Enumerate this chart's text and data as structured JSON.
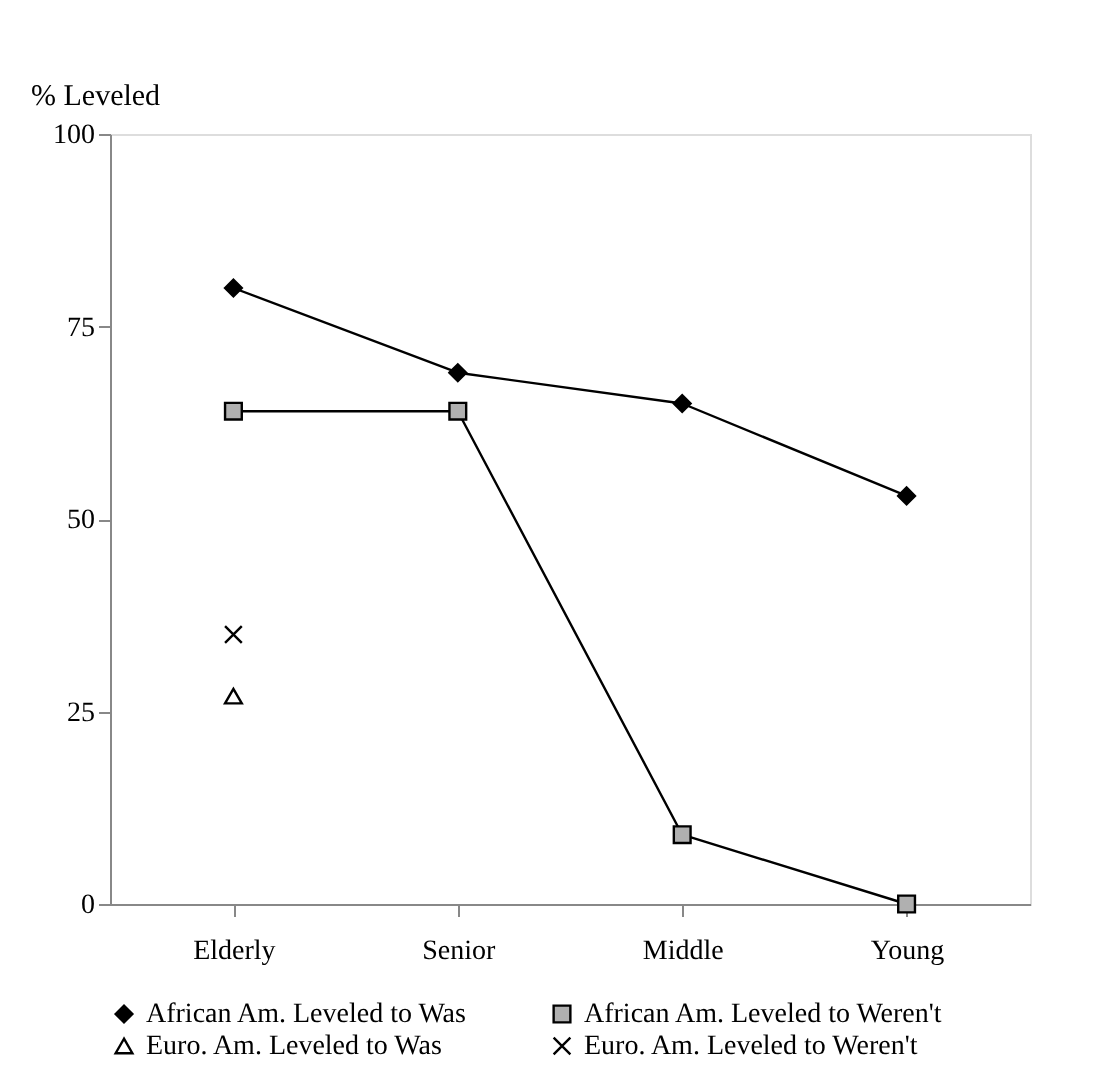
{
  "chart_data": {
    "type": "line",
    "ylabel": "% Leveled",
    "categories": [
      "Elderly",
      "Senior",
      "Middle",
      "Young"
    ],
    "ylim": [
      0,
      100
    ],
    "yticks": [
      0,
      25,
      50,
      75,
      100
    ],
    "grid": false,
    "legend": "bottom",
    "series": [
      {
        "name": "African Am. Leveled to Was",
        "color": "#000000",
        "marker": "diamond",
        "values": [
          80,
          69,
          65,
          53
        ]
      },
      {
        "name": "African Am. Leveled to Weren't",
        "color": "#b0b0b0",
        "marker": "square",
        "values": [
          64,
          64,
          9,
          0
        ]
      },
      {
        "name": "Euro. Am. Leveled to Was",
        "color": "#000000",
        "marker": "triangle",
        "values": [
          27,
          null,
          null,
          null
        ]
      },
      {
        "name": "Euro. Am. Leveled to Weren't",
        "color": "#000000",
        "marker": "cross",
        "values": [
          35,
          null,
          null,
          null
        ]
      }
    ]
  }
}
